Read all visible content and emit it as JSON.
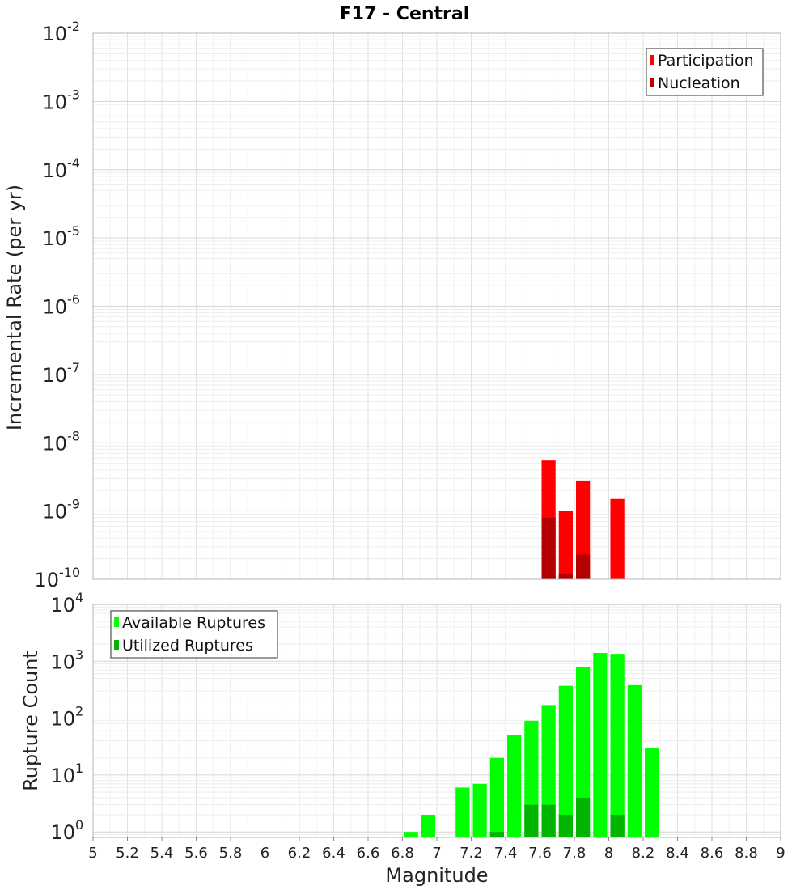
{
  "title": "F17 - Central",
  "chart_data": [
    {
      "type": "bar",
      "ylabel": "Incremental Rate (per yr)",
      "yscale": "log",
      "ylim": [
        1e-10,
        0.01
      ],
      "ytick_exponents": [
        "-10",
        "-9",
        "-8",
        "-7",
        "-6",
        "-5",
        "-4",
        "-3",
        "-2"
      ],
      "bin_width": 0.1,
      "grid": true,
      "legend_position": "top-right",
      "series": [
        {
          "name": "Participation",
          "color": "#ff0000",
          "x": [
            7.65,
            7.75,
            7.85,
            8.05
          ],
          "values": [
            5.5e-09,
            1e-09,
            2.8e-09,
            1.5e-09
          ]
        },
        {
          "name": "Nucleation",
          "color": "#b40000",
          "x": [
            7.65,
            7.75,
            7.85
          ],
          "values": [
            8e-10,
            1.2e-10,
            2.3e-10
          ]
        }
      ]
    },
    {
      "type": "bar",
      "xlabel": "Magnitude",
      "ylabel": "Rupture Count",
      "yscale": "log",
      "ylim": [
        0.8,
        10000
      ],
      "ytick_exponents": [
        "0",
        "1",
        "2",
        "3",
        "4"
      ],
      "xlim": [
        5,
        9
      ],
      "xticks": [
        "5",
        "5.2",
        "5.4",
        "5.6",
        "5.8",
        "6",
        "6.2",
        "6.4",
        "6.6",
        "6.8",
        "7",
        "7.2",
        "7.4",
        "7.6",
        "7.8",
        "8",
        "8.2",
        "8.4",
        "8.6",
        "8.8",
        "9"
      ],
      "bin_width": 0.1,
      "grid": true,
      "legend_position": "top-left",
      "series": [
        {
          "name": "Available Ruptures",
          "color": "#00ff00",
          "x": [
            6.85,
            6.95,
            7.15,
            7.25,
            7.35,
            7.45,
            7.55,
            7.65,
            7.75,
            7.85,
            7.95,
            8.05,
            8.15,
            8.25
          ],
          "values": [
            1,
            2,
            6,
            7,
            20,
            50,
            90,
            170,
            370,
            800,
            1400,
            1350,
            380,
            30
          ]
        },
        {
          "name": "Utilized Ruptures",
          "color": "#00b400",
          "x": [
            7.35,
            7.55,
            7.65,
            7.75,
            7.85,
            8.05
          ],
          "values": [
            1,
            3,
            3,
            2,
            4,
            2
          ]
        }
      ]
    }
  ]
}
